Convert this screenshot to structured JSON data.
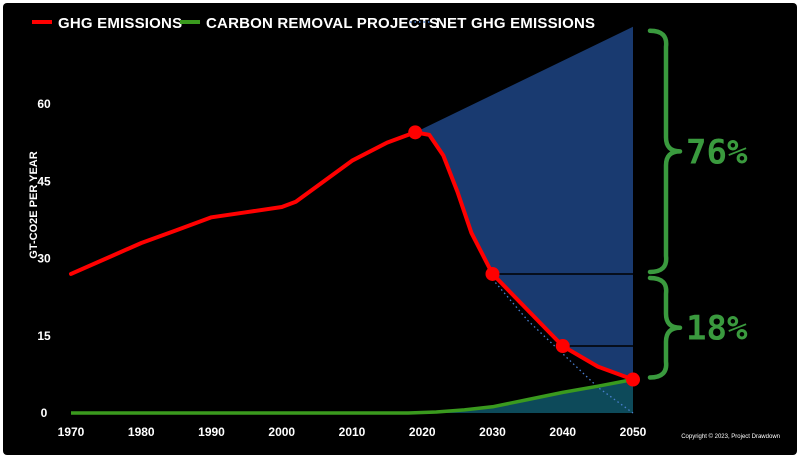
{
  "chart_data": {
    "type": "line",
    "title": "",
    "ylabel": "GT-CO2E PER YEAR",
    "xlabel": "",
    "xlim": [
      1970,
      2050
    ],
    "ylim": [
      0,
      75
    ],
    "x_ticks": [
      "1970",
      "1980",
      "1990",
      "2000",
      "2010",
      "2020",
      "2030",
      "2040",
      "2050"
    ],
    "y_ticks": [
      "0",
      "15",
      "30",
      "45",
      "60"
    ],
    "legend_position": "top",
    "legend": [
      {
        "label": "GHG EMISSIONS",
        "color": "#ff0000",
        "style": "solid"
      },
      {
        "label": "CARBON REMOVAL PROJECTS",
        "color": "#3a9a1e",
        "style": "solid"
      },
      {
        "label": "NET GHG EMISSIONS",
        "color": "#4a7fd0",
        "style": "dotted"
      }
    ],
    "series": [
      {
        "name": "GHG EMISSIONS",
        "color": "#ff0000",
        "points": [
          [
            1970,
            27
          ],
          [
            1975,
            30
          ],
          [
            1980,
            33
          ],
          [
            1985,
            35.5
          ],
          [
            1990,
            38
          ],
          [
            1995,
            39
          ],
          [
            2000,
            40
          ],
          [
            2002,
            41
          ],
          [
            2005,
            44
          ],
          [
            2010,
            49
          ],
          [
            2015,
            52.5
          ],
          [
            2019,
            54.5
          ],
          [
            2021,
            54
          ],
          [
            2023,
            50
          ],
          [
            2025,
            43
          ],
          [
            2027,
            35
          ],
          [
            2030,
            27
          ],
          [
            2035,
            20
          ],
          [
            2040,
            13
          ],
          [
            2045,
            9
          ],
          [
            2050,
            6.5
          ]
        ],
        "markers": [
          [
            2019,
            54.5
          ],
          [
            2030,
            27
          ],
          [
            2040,
            13
          ],
          [
            2050,
            6.5
          ]
        ]
      },
      {
        "name": "CARBON REMOVAL PROJECTS",
        "color": "#3a9a1e",
        "points": [
          [
            1970,
            0
          ],
          [
            2000,
            0
          ],
          [
            2018,
            0
          ],
          [
            2022,
            0.2
          ],
          [
            2026,
            0.6
          ],
          [
            2030,
            1.2
          ],
          [
            2035,
            2.6
          ],
          [
            2040,
            4
          ],
          [
            2045,
            5.2
          ],
          [
            2050,
            6.5
          ]
        ]
      },
      {
        "name": "NET GHG EMISSIONS",
        "color": "#4a7fd0",
        "points": [
          [
            2030,
            26
          ],
          [
            2035,
            18
          ],
          [
            2040,
            11.5
          ],
          [
            2045,
            5
          ],
          [
            2050,
            0
          ]
        ]
      }
    ],
    "annotations": [
      {
        "label": "76%",
        "color": "#3a9a3e",
        "from": 27,
        "to": 75
      },
      {
        "label": "18%",
        "color": "#3a9a3e",
        "from": 6.5,
        "to": 27
      }
    ],
    "shaded_region": {
      "color": "#193a70",
      "top_at_2050": 75
    }
  },
  "copyright": "Copyright © 2023, Project Drawdown"
}
